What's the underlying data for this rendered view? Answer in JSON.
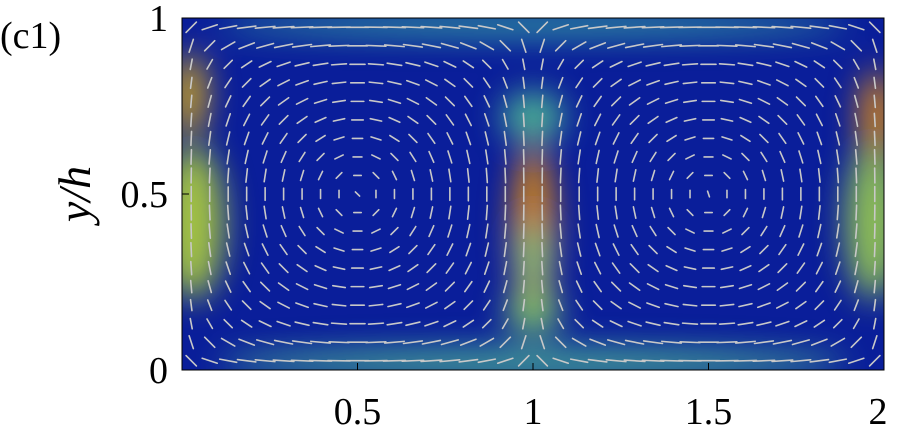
{
  "panel_label": "(c1)",
  "chart_data": {
    "type": "heatmap",
    "title": "",
    "xlabel": "",
    "ylabel": "y/h",
    "xlim": [
      0,
      2
    ],
    "ylim": [
      0,
      1
    ],
    "x_ticks": [
      {
        "value": 0.5,
        "label": "0.5"
      },
      {
        "value": 1,
        "label": "1"
      },
      {
        "value": 1.5,
        "label": "1.5"
      },
      {
        "value": 2,
        "label": "2"
      }
    ],
    "y_ticks": [
      {
        "value": 0,
        "label": "0"
      },
      {
        "value": 0.5,
        "label": "0.5"
      },
      {
        "value": 1,
        "label": "1"
      }
    ],
    "grid": false,
    "colormap": "jet",
    "vector_color": "#c8c8c8",
    "intensity_regions": [
      {
        "x_center": 1.0,
        "y_center": 0.4,
        "x_halfwidth": 0.06,
        "y_halfwidth": 0.24,
        "level": 0.62
      },
      {
        "x_center": 1.0,
        "y_center": 0.32,
        "x_halfwidth": 0.04,
        "y_halfwidth": 0.1,
        "level": 0.18
      },
      {
        "x_center": 1.0,
        "y_center": 0.72,
        "x_halfwidth": 0.09,
        "y_halfwidth": 0.07,
        "level": 0.22
      },
      {
        "x_center": 1.0,
        "y_center": 0.16,
        "x_halfwidth": 0.08,
        "y_halfwidth": 0.06,
        "level": 0.3
      },
      {
        "x_center": 0.02,
        "y_center": 0.78,
        "x_halfwidth": 0.05,
        "y_halfwidth": 0.12,
        "level": 0.55
      },
      {
        "x_center": 0.03,
        "y_center": 0.42,
        "x_halfwidth": 0.09,
        "y_halfwidth": 0.22,
        "level": 0.4
      },
      {
        "x_center": 1.98,
        "y_center": 0.72,
        "x_halfwidth": 0.05,
        "y_halfwidth": 0.13,
        "level": 0.62
      },
      {
        "x_center": 1.97,
        "y_center": 0.42,
        "x_halfwidth": 0.08,
        "y_halfwidth": 0.22,
        "level": 0.36
      },
      {
        "x_center": 1.0,
        "y_center": 0.02,
        "x_halfwidth": 0.9,
        "y_halfwidth": 0.04,
        "level": 0.22
      },
      {
        "x_center": 1.0,
        "y_center": 0.98,
        "x_halfwidth": 0.9,
        "y_halfwidth": 0.03,
        "level": 0.18
      }
    ]
  }
}
